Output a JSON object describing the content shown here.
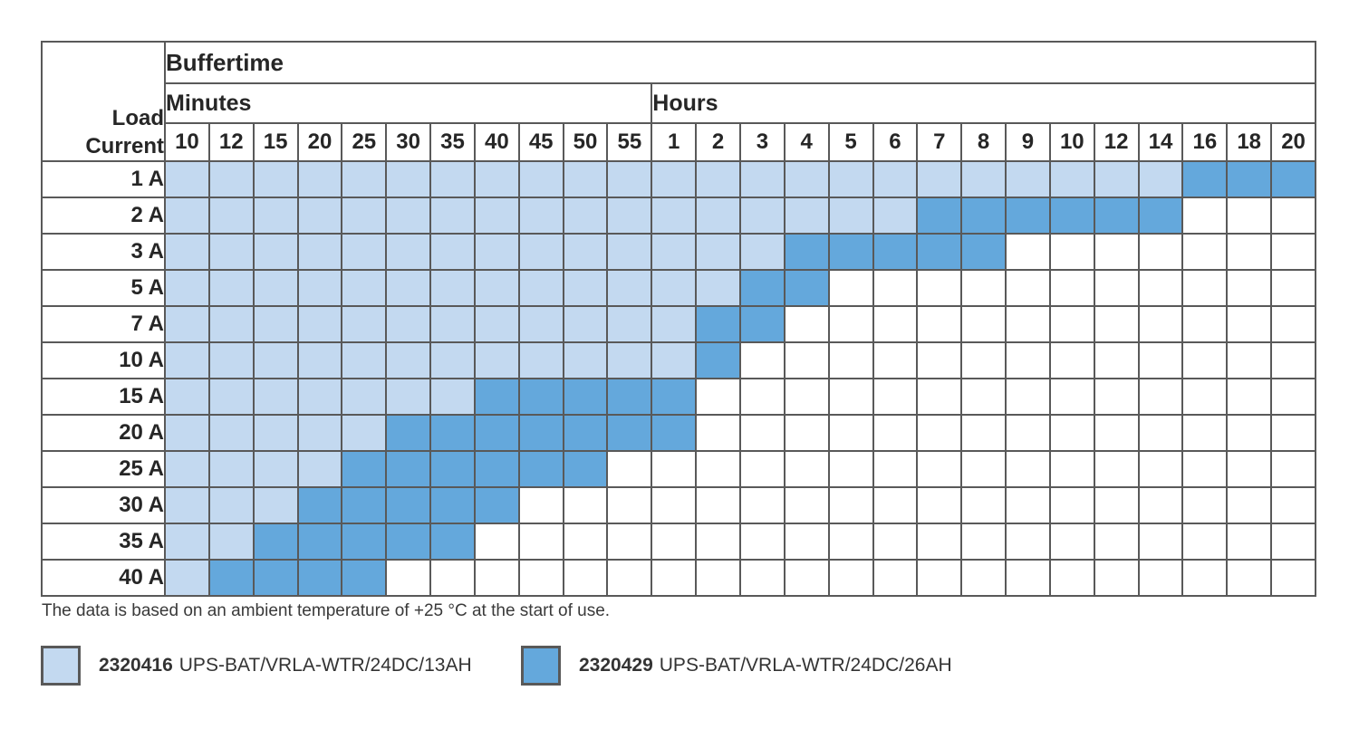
{
  "chart_data": {
    "type": "heatmap",
    "title": "Buffertime",
    "corner_label": [
      "Load",
      "Current"
    ],
    "row_axis": "Load Current",
    "col_groups": [
      {
        "label": "Minutes",
        "key": "m",
        "columns": [
          "10",
          "12",
          "15",
          "20",
          "25",
          "30",
          "35",
          "40",
          "45",
          "50",
          "55"
        ]
      },
      {
        "label": "Hours",
        "key": "h",
        "columns": [
          "1",
          "2",
          "3",
          "4",
          "5",
          "6",
          "7",
          "8",
          "9",
          "10",
          "12",
          "14",
          "16",
          "18",
          "20"
        ]
      }
    ],
    "cell_states": {
      "L": "light-blue = 2320416 UPS-BAT/VRLA-WTR/24DC/13AH",
      "D": "dark-blue = 2320429 UPS-BAT/VRLA-WTR/24DC/26AH",
      ".": "empty = not available"
    },
    "rows": [
      {
        "label": "1 A",
        "cells": "LLLLLLLLLLLLLLLLLLLLLLLDDD"
      },
      {
        "label": "2 A",
        "cells": "LLLLLLLLLLLLLLLLLDDDDDD..."
      },
      {
        "label": "3 A",
        "cells": "LLLLLLLLLLLLLLDDDDD......."
      },
      {
        "label": "5 A",
        "cells": "LLLLLLLLLLLLLDD..........."
      },
      {
        "label": "7 A",
        "cells": "LLLLLLLLLLLLDD............"
      },
      {
        "label": "10 A",
        "cells": "LLLLLLLLLLLLD............."
      },
      {
        "label": "15 A",
        "cells": "LLLLLLLDDDDD.............."
      },
      {
        "label": "20 A",
        "cells": "LLLLLDDDDDDD.............."
      },
      {
        "label": "25 A",
        "cells": "LLLLDDDDDD................"
      },
      {
        "label": "30 A",
        "cells": "LLLDDDDD.................."
      },
      {
        "label": "35 A",
        "cells": "LLDDDDD..................."
      },
      {
        "label": "40 A",
        "cells": "LDDDD....................."
      }
    ]
  },
  "footnote": "The data is based on an ambient temperature of +25 °C at the start of use.",
  "legend": [
    {
      "code": "2320416",
      "name": "UPS-BAT/VRLA-WTR/24DC/13AH",
      "state": "L"
    },
    {
      "code": "2320429",
      "name": "UPS-BAT/VRLA-WTR/24DC/26AH",
      "state": "D"
    }
  ],
  "colors": {
    "light_blue": "#c3d9f0",
    "dark_blue": "#64a8dc",
    "grid": "#595959"
  }
}
